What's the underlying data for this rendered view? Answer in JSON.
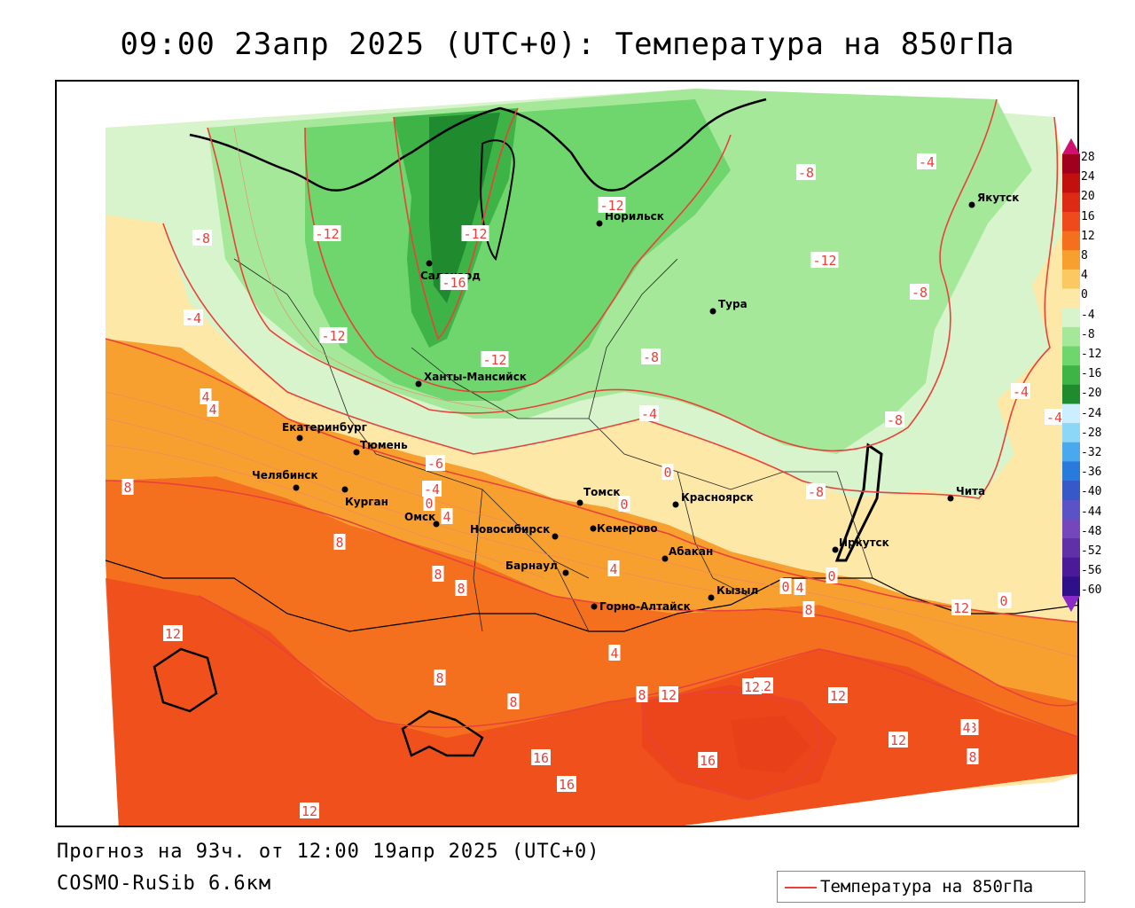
{
  "title": "09:00 23апр 2025 (UTC+0): Температура на 850гПа",
  "footer": {
    "forecast": "Прогноз на 93ч. от 12:00 19апр 2025 (UTC+0)",
    "model": "COSMO-RuSib 6.6км"
  },
  "legend": {
    "label": "Температура на 850гПа",
    "line_color": "#e8423a"
  },
  "colorbar": {
    "labels": [
      "28",
      "24",
      "20",
      "16",
      "12",
      "8",
      "4",
      "0",
      "-4",
      "-8",
      "-12",
      "-16",
      "-20",
      "-24",
      "-28",
      "-32",
      "-36",
      "-40",
      "-44",
      "-48",
      "-52",
      "-56",
      "-60"
    ],
    "colors": [
      "#a0001e",
      "#c21010",
      "#dc2a14",
      "#ee4a1c",
      "#f4701e",
      "#f7a030",
      "#fbc862",
      "#fde8a8",
      "#d8f4cc",
      "#a6e89a",
      "#6ed66c",
      "#3fb446",
      "#1f8a2e",
      "#cceeff",
      "#8cd6f8",
      "#4aa8ee",
      "#2a7ade",
      "#3658c8",
      "#5a52c6",
      "#7448bc",
      "#6030a8",
      "#4a1a98",
      "#30108a"
    ]
  },
  "cities": [
    {
      "name": "Салехард"
    },
    {
      "name": "Норильск"
    },
    {
      "name": "Тура"
    },
    {
      "name": "Якутск"
    },
    {
      "name": "Ханты-Мансийск"
    },
    {
      "name": "Екатеринбург"
    },
    {
      "name": "Тюмень"
    },
    {
      "name": "Челябинск"
    },
    {
      "name": "Курган"
    },
    {
      "name": "Омск"
    },
    {
      "name": "Новосибирск"
    },
    {
      "name": "Томск"
    },
    {
      "name": "Кемерово"
    },
    {
      "name": "Красноярск"
    },
    {
      "name": "Барнаул"
    },
    {
      "name": "Абакан"
    },
    {
      "name": "Горно-Алтайск"
    },
    {
      "name": "Кызыл"
    },
    {
      "name": "Иркутск"
    },
    {
      "name": "Чита"
    }
  ],
  "isotherm_labels": [
    "-12",
    "-12",
    "-12",
    "-12",
    "-16",
    "-12",
    "-8",
    "-8",
    "-12",
    "-8",
    "-4",
    "-4",
    "-8",
    "-8",
    "-4",
    "-4",
    "-4",
    "-8",
    "-6",
    "-4",
    "0",
    "0",
    "4",
    "0",
    "4",
    "4",
    "8",
    "8",
    "8",
    "8",
    "8",
    "4",
    "0",
    "4",
    "0",
    "4",
    "8",
    "0",
    "12",
    "12",
    "12",
    "12",
    "16",
    "16",
    "16",
    "12",
    "12",
    "12",
    "8",
    "8",
    "8",
    "12",
    "4",
    "8",
    "0"
  ]
}
